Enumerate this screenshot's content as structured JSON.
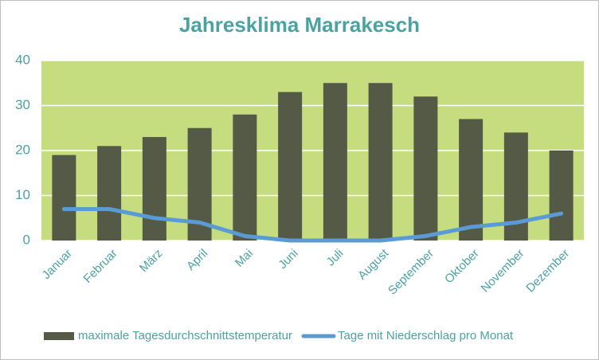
{
  "chart_data": {
    "type": "bar",
    "title": "Jahresklima Marrakesch",
    "categories": [
      "Januar",
      "Februar",
      "März",
      "April",
      "Mai",
      "Juni",
      "Juli",
      "August",
      "September",
      "Oktober",
      "November",
      "Dezember"
    ],
    "series": [
      {
        "name": "maximale Tagesdurchschnittstemperatur",
        "type": "bar",
        "color": "#545a46",
        "values": [
          19,
          21,
          23,
          25,
          28,
          33,
          35,
          35,
          32,
          27,
          24,
          20
        ]
      },
      {
        "name": "Tage mit Niederschlag pro Monat",
        "type": "line",
        "color": "#5b9bd5",
        "values": [
          7,
          7,
          5,
          4,
          1,
          0,
          0,
          0,
          1,
          3,
          4,
          6
        ]
      }
    ],
    "ylim": [
      0,
      40
    ],
    "yticks": [
      0,
      10,
      20,
      30,
      40
    ],
    "grid": true,
    "legend": "bottom"
  }
}
